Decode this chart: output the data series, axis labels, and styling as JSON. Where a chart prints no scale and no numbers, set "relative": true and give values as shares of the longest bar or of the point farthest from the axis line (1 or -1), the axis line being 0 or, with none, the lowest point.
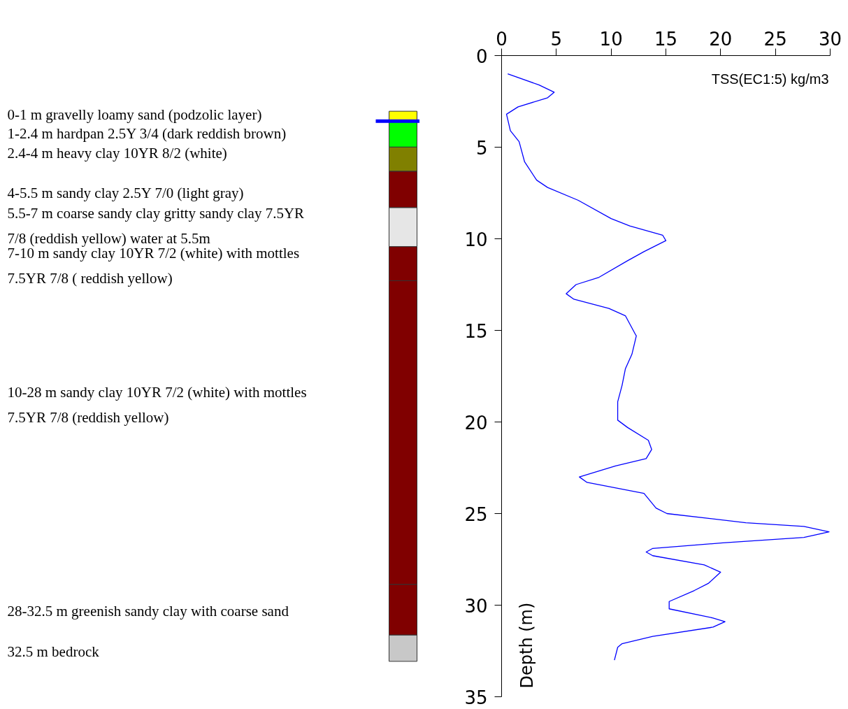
{
  "chart_data": [
    {
      "type": "bar",
      "stacked": true,
      "relative": true,
      "categories": [
        null
      ],
      "series": [
        {
          "color": "#c8c8c8",
          "values": [
            0.048
          ]
        },
        {
          "color": "#800000",
          "values": [
            0.092
          ]
        },
        {
          "color": "#800000",
          "values": [
            0.552
          ]
        },
        {
          "color": "#800000",
          "values": [
            0.062
          ]
        },
        {
          "color": "#e6e6e6",
          "values": [
            0.071
          ]
        },
        {
          "color": "#800000",
          "values": [
            0.066
          ]
        },
        {
          "color": "#808000",
          "values": [
            0.044
          ]
        },
        {
          "color": "#00ff00",
          "values": [
            0.047
          ]
        },
        {
          "color": "#ffff00",
          "values": [
            0.018
          ]
        }
      ],
      "ref_lines": [
        {
          "axis": "y",
          "value": 0.982,
          "label": null,
          "color": "#0000ff"
        }
      ],
      "annotations": [
        "0-1 m gravelly loamy sand (podzolic layer)",
        "1-2.4 m hardpan 2.5Y 3/4 (dark reddish brown)",
        "2.4-4 m heavy clay 10YR 8/2 (white)",
        "4-5.5 m sandy clay 2.5Y 7/0 (light gray)",
        "5.5-7 m coarse sandy clay gritty sandy clay 7.5YR 7/8 (reddish yellow) water at 5.5m",
        "7-10 m sandy clay 10YR 7/2 (white) with mottles 7.5YR 7/8 ( reddish yellow)",
        "10-28 m sandy clay 10YR 7/2 (white) with mottles 7.5YR 7/8 (reddish yellow)",
        "28-32.5 m greenish sandy clay with coarse sand",
        "32.5 m bedrock"
      ]
    },
    {
      "type": "line",
      "xlabel": "TSS(EC1:5) kg/m3",
      "ylabel": "Depth (m)",
      "xlim": [
        0,
        30
      ],
      "xticks": [
        0,
        5,
        10,
        15,
        20,
        25,
        30
      ],
      "ylim": [
        35,
        0
      ],
      "yticks": [
        0,
        5,
        10,
        15,
        20,
        25,
        30,
        35
      ],
      "grid": false,
      "marker": "none",
      "line_style": "solid",
      "series": [
        {
          "color": "#0000ff",
          "x": [
            0.56,
            3.4,
            4.8,
            4.2,
            1.5,
            0.45,
            0.8,
            1.6,
            2.1,
            3.2,
            4.2,
            7.0,
            10.0,
            11.7,
            14.7,
            15.0,
            13.0,
            11.5,
            8.9,
            6.8,
            5.9,
            6.6,
            9.8,
            11.3,
            12.2,
            12.3,
            11.9,
            11.3,
            11.0,
            10.6,
            10.6,
            11.5,
            13.4,
            13.7,
            13.2,
            10.4,
            7.1,
            7.8,
            13.0,
            14.1,
            15.1,
            22.3,
            27.6,
            29.9,
            27.6,
            20.2,
            13.8,
            13.2,
            13.8,
            18.5,
            20.0,
            18.9,
            17.6,
            15.3,
            15.3,
            19.3,
            20.4,
            19.3,
            13.8,
            11.0,
            10.6,
            10.3
          ],
          "values": [
            1.0,
            1.6,
            2.0,
            2.3,
            2.8,
            3.2,
            4.1,
            4.7,
            5.8,
            6.8,
            7.2,
            7.9,
            8.9,
            9.3,
            9.8,
            10.1,
            10.7,
            11.2,
            12.1,
            12.5,
            13.0,
            13.3,
            13.8,
            14.2,
            15.2,
            15.3,
            16.3,
            17.1,
            18.0,
            18.9,
            19.9,
            20.3,
            21.0,
            21.5,
            22.0,
            22.4,
            23.0,
            23.3,
            23.9,
            24.7,
            25.0,
            25.5,
            25.7,
            26.0,
            26.3,
            26.6,
            26.9,
            27.1,
            27.3,
            27.8,
            28.2,
            28.8,
            29.2,
            29.8,
            30.2,
            30.7,
            30.9,
            31.2,
            31.7,
            32.1,
            32.3,
            33.0
          ]
        }
      ]
    }
  ]
}
